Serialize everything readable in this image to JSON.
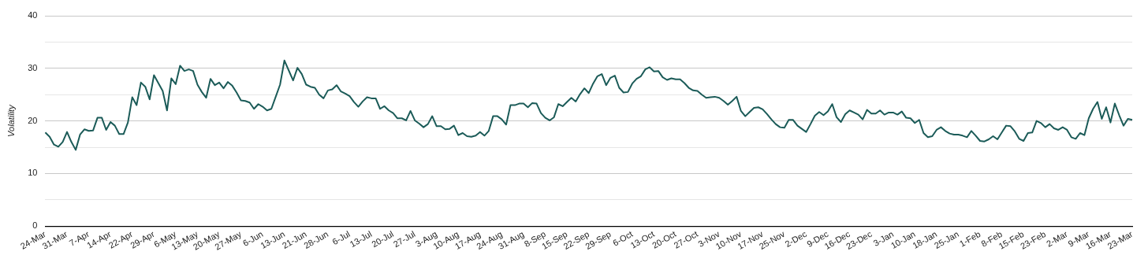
{
  "chart_data": {
    "type": "line",
    "ylabel": "Volatility",
    "categories": [
      "24-Mar",
      null,
      null,
      null,
      null,
      "31-Mar",
      null,
      null,
      null,
      null,
      "7-Apr",
      null,
      null,
      null,
      null,
      "14-Apr",
      null,
      null,
      null,
      null,
      "22-Apr",
      null,
      null,
      null,
      null,
      "29-Apr",
      null,
      null,
      null,
      null,
      "6-May",
      null,
      null,
      null,
      null,
      "13-May",
      null,
      null,
      null,
      null,
      "20-May",
      null,
      null,
      null,
      null,
      "27-May",
      null,
      null,
      null,
      null,
      "6-Jun",
      null,
      null,
      null,
      null,
      "13-Jun",
      null,
      null,
      null,
      null,
      "21-Jun",
      null,
      null,
      null,
      null,
      "28-Jun",
      null,
      null,
      null,
      null,
      "6-Jul",
      null,
      null,
      null,
      null,
      "13-Jul",
      null,
      null,
      null,
      null,
      "20-Jul",
      null,
      null,
      null,
      null,
      "27-Jul",
      null,
      null,
      null,
      null,
      "3-Aug",
      null,
      null,
      null,
      null,
      "10-Aug",
      null,
      null,
      null,
      null,
      "17-Aug",
      null,
      null,
      null,
      null,
      "24-Aug",
      null,
      null,
      null,
      null,
      "31-Aug",
      null,
      null,
      null,
      null,
      "8-Sep",
      null,
      null,
      null,
      null,
      "15-Sep",
      null,
      null,
      null,
      null,
      "22-Sep",
      null,
      null,
      null,
      null,
      "29-Sep",
      null,
      null,
      null,
      null,
      "6-Oct",
      null,
      null,
      null,
      null,
      "13-Oct",
      null,
      null,
      null,
      null,
      "20-Oct",
      null,
      null,
      null,
      null,
      "27-Oct",
      null,
      null,
      null,
      null,
      "3-Nov",
      null,
      null,
      null,
      null,
      "10-Nov",
      null,
      null,
      null,
      null,
      "17-Nov",
      null,
      null,
      null,
      null,
      "25-Nov",
      null,
      null,
      null,
      null,
      "2-Dec",
      null,
      null,
      null,
      null,
      "9-Dec",
      null,
      null,
      null,
      null,
      "16-Dec",
      null,
      null,
      null,
      null,
      "23-Dec",
      null,
      null,
      null,
      null,
      "3-Jan",
      null,
      null,
      null,
      null,
      "10-Jan",
      null,
      null,
      null,
      null,
      "18-Jan",
      null,
      null,
      null,
      null,
      "25-Jan",
      null,
      null,
      null,
      null,
      "1-Feb",
      null,
      null,
      null,
      null,
      "8-Feb",
      null,
      null,
      null,
      null,
      "15-Feb",
      null,
      null,
      null,
      null,
      "23-Feb",
      null,
      null,
      null,
      null,
      "2-Mar",
      null,
      null,
      null,
      null,
      "9-Mar",
      null,
      null,
      null,
      null,
      "16-Mar",
      null,
      null,
      null,
      null,
      "23-Mar"
    ],
    "values": [
      17.8,
      17,
      15.5,
      15.1,
      16,
      17.9,
      16,
      14.5,
      17.4,
      18.4,
      18.1,
      18.2,
      20.6,
      20.6,
      18.3,
      19.8,
      19.1,
      17.5,
      17.5,
      19.7,
      24.5,
      23,
      27.3,
      26.5,
      24.1,
      28.7,
      27.2,
      25.7,
      22,
      28.1,
      27,
      30.5,
      29.5,
      29.8,
      29.5,
      26.9,
      25.5,
      24.4,
      28,
      26.8,
      27.3,
      26.2,
      27.4,
      26.7,
      25.4,
      23.9,
      23.8,
      23.5,
      22.3,
      23.2,
      22.7,
      22,
      22.3,
      24.6,
      26.9,
      31.5,
      29.6,
      27.7,
      30.1,
      28.9,
      26.9,
      26.5,
      26.3,
      25,
      24.3,
      25.8,
      26,
      26.8,
      25.6,
      25.2,
      24.7,
      23.6,
      22.7,
      23.7,
      24.5,
      24.3,
      24.3,
      22.3,
      22.8,
      22,
      21.5,
      20.5,
      20.5,
      20.1,
      21.9,
      20.1,
      19.5,
      18.8,
      19.4,
      20.9,
      19,
      19,
      18.4,
      18.5,
      19.1,
      17.3,
      17.7,
      17.1,
      17,
      17.2,
      17.9,
      17.2,
      18.1,
      20.9,
      20.9,
      20.3,
      19.3,
      23,
      23,
      23.3,
      23.3,
      22.6,
      23.4,
      23.3,
      21.5,
      20.6,
      20.1,
      20.7,
      23.2,
      22.8,
      23.6,
      24.4,
      23.7,
      25.1,
      26.2,
      25.3,
      27.1,
      28.5,
      28.9,
      26.8,
      28.2,
      28.6,
      26.3,
      25.4,
      25.5,
      27.1,
      28,
      28.5,
      29.8,
      30.2,
      29.4,
      29.5,
      28.3,
      27.8,
      28.1,
      27.9,
      27.9,
      27.2,
      26.3,
      25.8,
      25.7,
      25,
      24.4,
      24.5,
      24.6,
      24.4,
      23.8,
      23.1,
      23.8,
      24.6,
      21.9,
      20.9,
      21.7,
      22.5,
      22.6,
      22.2,
      21.3,
      20.3,
      19.4,
      18.8,
      18.7,
      20.2,
      20.2,
      19.1,
      18.5,
      17.9,
      19.4,
      21,
      21.7,
      21.1,
      21.8,
      23.2,
      20.7,
      19.8,
      21.3,
      22,
      21.6,
      21.2,
      20.3,
      22.1,
      21.4,
      21.4,
      22,
      21.2,
      21.6,
      21.6,
      21.2,
      21.8,
      20.6,
      20.5,
      19.6,
      20.2,
      17.7,
      16.9,
      17.1,
      18.3,
      18.8,
      18.1,
      17.6,
      17.4,
      17.4,
      17.2,
      16.9,
      18.1,
      17.2,
      16.2,
      16.1,
      16.5,
      17.1,
      16.5,
      17.8,
      19.1,
      19,
      18,
      16.6,
      16.2,
      17.7,
      17.8,
      20,
      19.6,
      18.8,
      19.4,
      18.6,
      18.3,
      18.8,
      18.3,
      16.9,
      16.6,
      17.7,
      17.3,
      20.5,
      22.3,
      23.6,
      20.4,
      22.6,
      19.7,
      23.3,
      21.1,
      19.1,
      20.4,
      20.2
    ],
    "color": "#1b5b58",
    "marker": "none",
    "ylim": [
      0,
      40
    ],
    "yticks": [
      0,
      {
        "value": 5,
        "label": null
      },
      10,
      {
        "value": 15,
        "label": null
      },
      20,
      {
        "value": 25,
        "label": null
      },
      30,
      {
        "value": 35,
        "label": null
      },
      40
    ],
    "grid": "y"
  }
}
